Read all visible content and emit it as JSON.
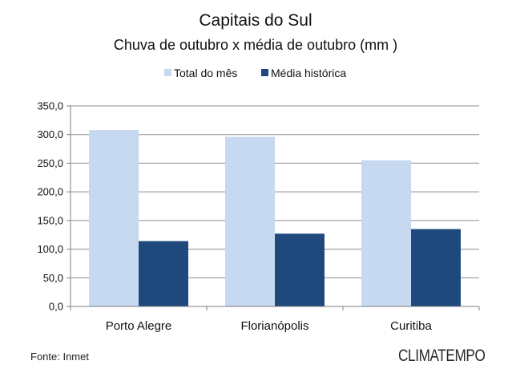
{
  "chart_data": {
    "type": "bar",
    "title": "Capitais do Sul",
    "subtitle": "Chuva de outubro x média de outubro (mm )",
    "categories": [
      "Porto Alegre",
      "Florianópolis",
      "Curitiba"
    ],
    "series": [
      {
        "name": "Total do mês",
        "values": [
          308,
          296,
          255
        ],
        "color": "#c6d9f0"
      },
      {
        "name": "Média histórica",
        "values": [
          114,
          127,
          135
        ],
        "color": "#1f497d"
      }
    ],
    "ylim": [
      0,
      350
    ],
    "yticks": [
      "0,0",
      "50,0",
      "100,0",
      "150,0",
      "200,0",
      "250,0",
      "300,0",
      "350,0"
    ],
    "grid": true,
    "legend_position": "top-center"
  },
  "footer": {
    "source": "Fonte: Inmet",
    "brand": "CLIMATEMPO"
  }
}
